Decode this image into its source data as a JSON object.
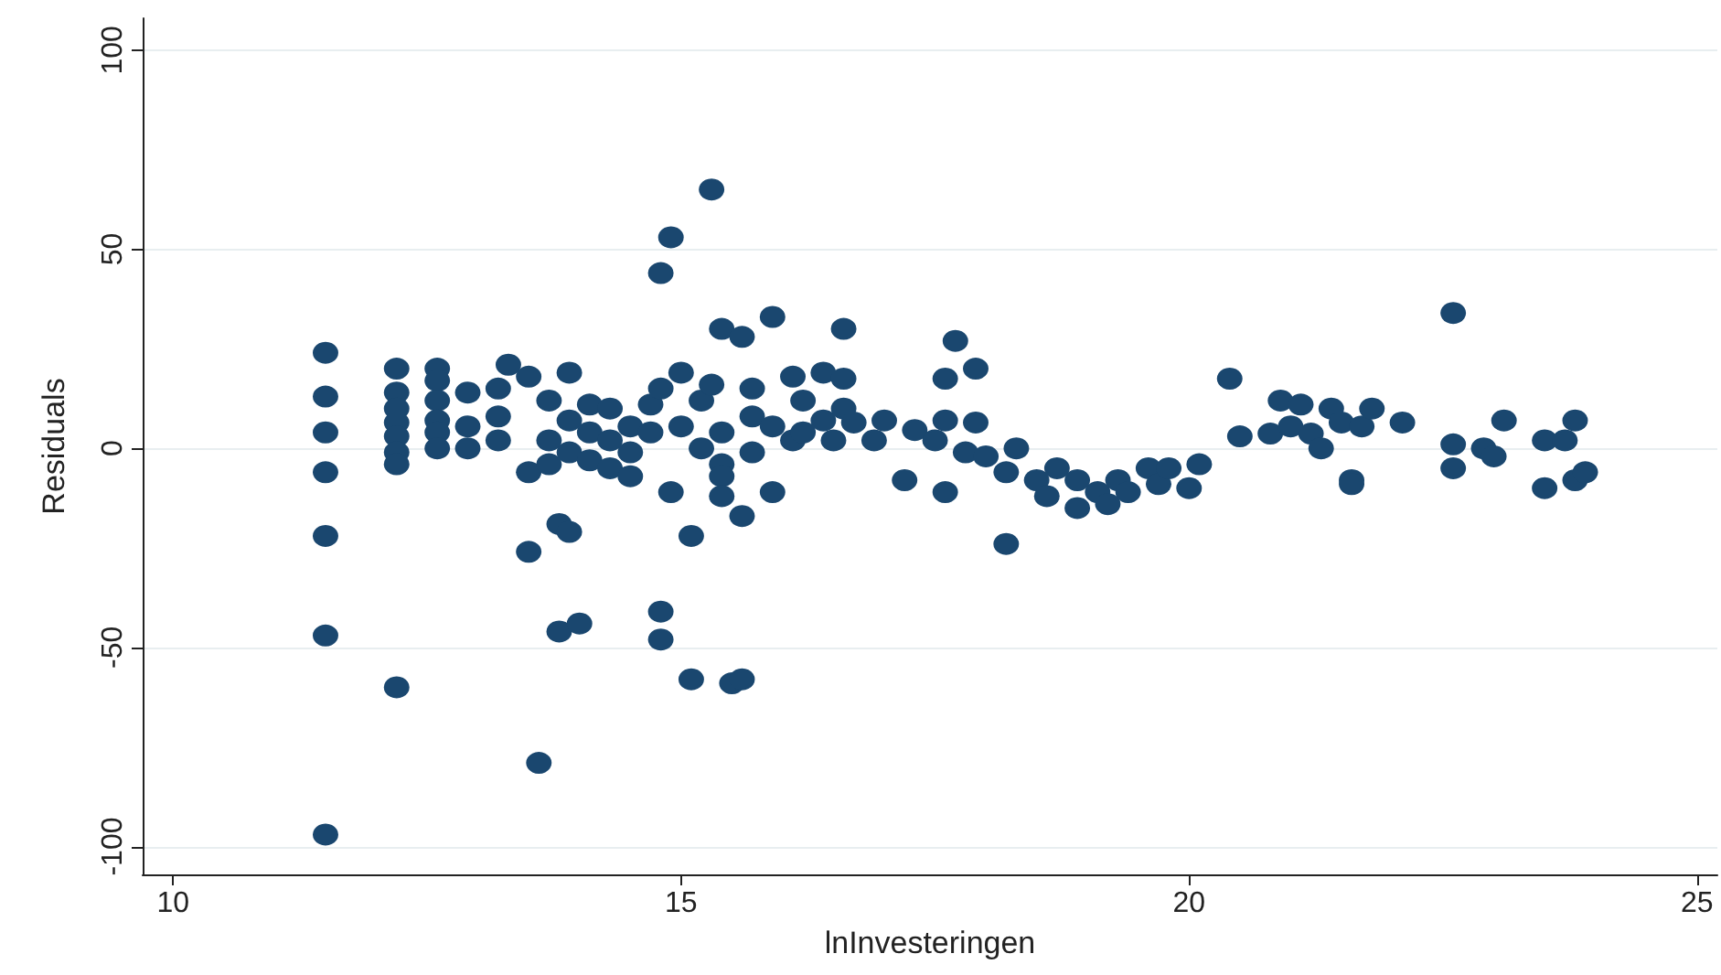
{
  "chart_data": {
    "type": "scatter",
    "xlabel": "lnInvesteringen",
    "ylabel": "Residuals",
    "xlim": [
      9.7,
      25.2
    ],
    "ylim": [
      -107,
      108
    ],
    "xticks": [
      10,
      15,
      20,
      25
    ],
    "yticks": [
      -100,
      -50,
      0,
      50,
      100
    ],
    "grid": "y",
    "marker": "circle",
    "series": [
      {
        "color": "#1a476f",
        "x": [
          11.5,
          11.5,
          11.5,
          11.5,
          11.5,
          11.5,
          11.5,
          12.2,
          12.2,
          12.2,
          12.2,
          12.2,
          12.2,
          12.2,
          12.2,
          12.6,
          12.6,
          12.6,
          12.6,
          12.6,
          12.6,
          12.9,
          12.9,
          12.9,
          13.2,
          13.2,
          13.2,
          13.3,
          13.5,
          13.5,
          13.5,
          13.6,
          13.7,
          13.7,
          13.7,
          13.8,
          13.9,
          13.8,
          14.0,
          13.9,
          13.9,
          13.9,
          14.1,
          14.1,
          14.1,
          14.3,
          14.3,
          14.3,
          14.5,
          14.5,
          14.5,
          14.7,
          14.7,
          14.8,
          14.8,
          14.8,
          14.8,
          14.9,
          14.9,
          15.0,
          15.0,
          15.1,
          15.1,
          15.2,
          15.2,
          15.3,
          15.3,
          15.4,
          15.4,
          15.4,
          15.4,
          15.4,
          15.5,
          15.6,
          15.6,
          15.6,
          15.7,
          15.7,
          15.7,
          15.9,
          15.9,
          15.9,
          16.1,
          16.1,
          16.2,
          16.2,
          16.4,
          16.4,
          16.5,
          16.6,
          16.6,
          16.6,
          16.7,
          16.9,
          17.0,
          17.2,
          17.3,
          17.5,
          17.6,
          17.6,
          17.6,
          17.7,
          17.8,
          17.9,
          17.9,
          18.0,
          18.2,
          18.2,
          18.3,
          18.5,
          18.6,
          18.7,
          18.9,
          18.9,
          19.1,
          19.2,
          19.3,
          19.4,
          19.6,
          19.7,
          19.8,
          20.0,
          20.1,
          20.4,
          20.5,
          20.8,
          20.9,
          21.0,
          21.1,
          21.2,
          21.3,
          21.4,
          21.5,
          21.6,
          21.6,
          21.7,
          21.8,
          22.1,
          22.6,
          22.6,
          22.6,
          22.9,
          23.0,
          23.1,
          23.5,
          23.5,
          23.7,
          23.8,
          23.8,
          23.9
        ],
        "values": [
          24,
          13,
          4,
          -6,
          -22,
          -47,
          -97,
          20,
          14,
          10,
          6.5,
          3,
          -1,
          -4,
          -60,
          20,
          17,
          12,
          7,
          4,
          0,
          14,
          5.5,
          0,
          15,
          8,
          2,
          21,
          18,
          -6,
          -26,
          -79,
          12,
          2,
          -4,
          -19,
          -21,
          -46,
          -44,
          19,
          7,
          -1,
          11,
          4,
          -3,
          10,
          2,
          -5,
          5.5,
          -1,
          -7,
          11,
          4,
          44,
          -41,
          -48,
          15,
          53,
          -11,
          19,
          5.5,
          -58,
          -22,
          12,
          0,
          65,
          16,
          4,
          -4,
          30,
          -7,
          -12,
          -59,
          -58,
          28,
          -17,
          8,
          -1,
          15,
          33,
          5.5,
          -11,
          18,
          2,
          12,
          4,
          19,
          7,
          2,
          30,
          17.5,
          10,
          6.5,
          2,
          7,
          -8,
          4.6,
          2,
          17.5,
          7,
          -11,
          27,
          -1,
          20,
          6.5,
          -2,
          -6,
          -24,
          0,
          -8,
          -12,
          -5,
          -8,
          -15,
          -11,
          -14,
          -8,
          -11,
          -5,
          -9,
          -5,
          -10,
          -4,
          17.5,
          3,
          3.7,
          12,
          5.5,
          11,
          3.7,
          0,
          10,
          6.5,
          -8,
          -9,
          5.5,
          10,
          6.5,
          34,
          1,
          -5,
          0,
          -2,
          7,
          -10,
          2,
          2,
          -8,
          7,
          -6
        ]
      }
    ]
  }
}
